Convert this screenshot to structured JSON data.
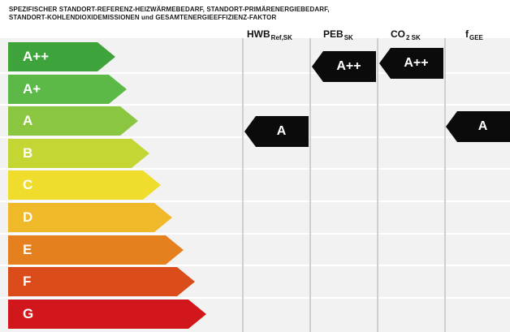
{
  "header": {
    "line1": "SPEZIFISCHER STANDORT-REFERENZ-HEIZWÄRMEBEDARF, STANDORT-PRIMÄRENERGIEBEDARF,",
    "line2": "STANDORT-KOHLENDIOXIDEMISSIONEN und GESAMTENERGIEEFFIZIENZ-FAKTOR"
  },
  "columns": [
    {
      "main": "HWB",
      "sub": "Ref,SK"
    },
    {
      "main": "PEB",
      "sub": "SK"
    },
    {
      "main": "CO",
      "sub": "2 SK"
    },
    {
      "main": "f",
      "sub": "GEE"
    }
  ],
  "classes": [
    {
      "label": "A++",
      "color": "#3ea33a"
    },
    {
      "label": "A+",
      "color": "#5cb847"
    },
    {
      "label": "A",
      "color": "#8ac640"
    },
    {
      "label": "B",
      "color": "#c3d634"
    },
    {
      "label": "C",
      "color": "#f0dc2c"
    },
    {
      "label": "D",
      "color": "#f0b92a"
    },
    {
      "label": "E",
      "color": "#e5801f"
    },
    {
      "label": "F",
      "color": "#db4c1b"
    },
    {
      "label": "G",
      "color": "#d1171b"
    }
  ],
  "ratings": {
    "hwb": "A",
    "peb": "A++",
    "co2": "A++",
    "fgee": "A"
  }
}
